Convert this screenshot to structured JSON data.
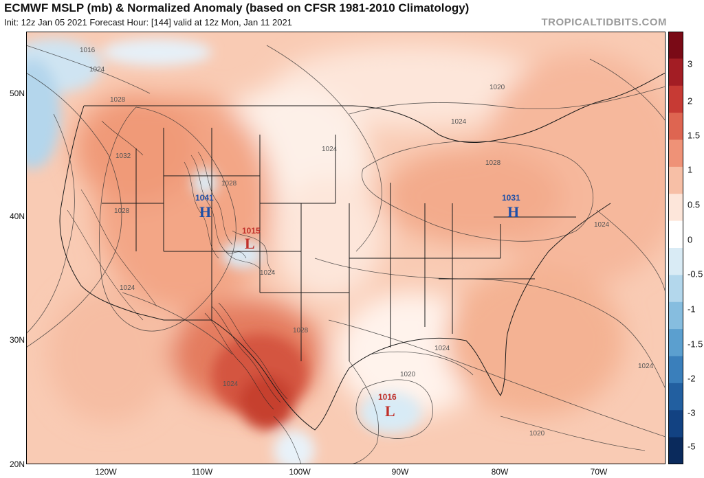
{
  "header": {
    "title": "ECMWF MSLP (mb) & Normalized Anomaly (based on CFSR 1981-2010 Climatology)",
    "subtitle": "Init: 12z Jan 05 2021   Forecast Hour: [144]   valid at 12z Mon, Jan 11 2021",
    "brand": "TROPICALTIDBITS.COM"
  },
  "colorbar": {
    "labels": [
      "3",
      "2",
      "1.5",
      "1",
      "0.5",
      "0",
      "-0.5",
      "-1",
      "-1.5",
      "-2",
      "-3",
      "-5"
    ],
    "colors": [
      "#7a0a16",
      "#a31d24",
      "#c73a34",
      "#de6551",
      "#ef9277",
      "#f7bfa6",
      "#fde6da",
      "#ffffff",
      "#d9ebf5",
      "#b3d7ec",
      "#86bddf",
      "#5b9fcf",
      "#3a7fbb",
      "#225fa0",
      "#124282",
      "#0a2a5c"
    ]
  },
  "axes": {
    "latitudes": [
      "50N",
      "40N",
      "30N",
      "20N"
    ],
    "longitudes": [
      "120W",
      "110W",
      "100W",
      "90W",
      "80W",
      "70W"
    ]
  },
  "isobar_labels": [
    "1016",
    "1024",
    "1028",
    "1032",
    "1028",
    "1024",
    "1028",
    "1024",
    "1028",
    "1024",
    "1020",
    "1024",
    "1028",
    "1024",
    "1024",
    "1020",
    "1024",
    "1020",
    "1024"
  ],
  "systems": [
    {
      "type": "H",
      "value": "1041",
      "color": "#1d4fa8"
    },
    {
      "type": "L",
      "value": "1015",
      "color": "#c0302a"
    },
    {
      "type": "H",
      "value": "1031",
      "color": "#1d4fa8"
    },
    {
      "type": "L",
      "value": "1016",
      "color": "#c0302a"
    }
  ]
}
